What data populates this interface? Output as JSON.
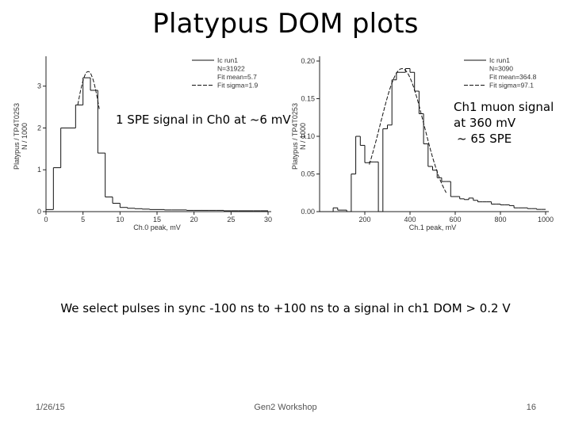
{
  "slide": {
    "title": "Platypus DOM plots",
    "annotation_left": "1 SPE signal in Ch0 at ~6 mV",
    "annotation_right_lines": [
      "Ch1 muon signal",
      "at 360 mV",
      "~ 65 SPE"
    ],
    "note": "We select pulses in sync -100 ns to +100 ns to a signal in ch1 DOM > 0.2 V",
    "footer": {
      "date": "1/26/15",
      "center": "Gen2 Workshop",
      "page": "16"
    }
  },
  "chart_data": [
    {
      "type": "histogram",
      "xlabel": "Ch.0 peak, mV",
      "ylabel": "Platypus / TP4T0253  N / 1000",
      "xlim": [
        0,
        30
      ],
      "ylim": [
        0,
        3.6
      ],
      "xticks": [
        0,
        5,
        10,
        15,
        20,
        25,
        30
      ],
      "yticks": [
        0,
        1,
        2,
        3
      ],
      "bin_width": 1,
      "bin_starts": [
        0,
        1,
        2,
        3,
        4,
        5,
        6,
        7,
        8,
        9,
        10,
        11,
        12,
        13,
        14,
        15,
        16,
        17,
        18,
        19,
        20,
        21,
        22,
        23,
        24,
        25,
        26,
        27,
        28,
        29
      ],
      "values": [
        0.05,
        1.05,
        2.0,
        2.0,
        2.55,
        3.2,
        2.9,
        1.4,
        0.35,
        0.2,
        0.1,
        0.08,
        0.07,
        0.06,
        0.05,
        0.05,
        0.04,
        0.04,
        0.04,
        0.03,
        0.03,
        0.03,
        0.03,
        0.03,
        0.02,
        0.02,
        0.02,
        0.02,
        0.02,
        0.02
      ],
      "fit": {
        "type": "gaussian",
        "mean": 5.7,
        "sigma": 1.9,
        "range": [
          4.3,
          7.2
        ],
        "peak": 3.35
      },
      "legend": [
        "Ic run1",
        "N=31922",
        "Fit mean=5.7",
        "Fit sigma=1.9"
      ],
      "legend_position": "top-right"
    },
    {
      "type": "histogram",
      "xlabel": "Ch.1 peak, mV",
      "ylabel": "Platypus / TP4T0253  N / 1000",
      "xlim": [
        0,
        1000
      ],
      "ylim": [
        0,
        0.2
      ],
      "xticks": [
        200,
        400,
        600,
        800,
        1000
      ],
      "yticks": [
        0.0,
        0.05,
        0.1,
        0.15,
        0.2
      ],
      "ytick_labels": [
        "0.00",
        "0.05",
        "0.10",
        "0.15",
        "0.20"
      ],
      "bin_width": 20,
      "bin_starts": [
        0,
        20,
        40,
        60,
        80,
        100,
        120,
        140,
        160,
        180,
        200,
        220,
        240,
        260,
        280,
        300,
        320,
        340,
        360,
        380,
        400,
        420,
        440,
        460,
        480,
        500,
        520,
        540,
        560,
        580,
        600,
        620,
        640,
        660,
        680,
        700,
        720,
        740,
        760,
        780,
        800,
        820,
        840,
        860,
        880,
        900,
        920,
        940,
        960,
        980
      ],
      "values": [
        0.0,
        0.0,
        0.0,
        0.005,
        0.002,
        0.002,
        0.0,
        0.05,
        0.1,
        0.088,
        0.065,
        0.066,
        0.066,
        0.0,
        0.11,
        0.115,
        0.175,
        0.185,
        0.185,
        0.19,
        0.185,
        0.16,
        0.13,
        0.09,
        0.06,
        0.055,
        0.045,
        0.04,
        0.04,
        0.02,
        0.02,
        0.017,
        0.016,
        0.018,
        0.015,
        0.013,
        0.013,
        0.013,
        0.01,
        0.01,
        0.009,
        0.009,
        0.008,
        0.005,
        0.005,
        0.005,
        0.004,
        0.004,
        0.003,
        0.003
      ],
      "fit": {
        "type": "gaussian",
        "mean": 364.8,
        "sigma": 97.1,
        "range": [
          220,
          560
        ],
        "peak": 0.19
      },
      "legend": [
        "Ic run1",
        "N=3090",
        "Fit mean=364.8",
        "Fit sigma=97.1"
      ],
      "legend_position": "top-right"
    }
  ]
}
